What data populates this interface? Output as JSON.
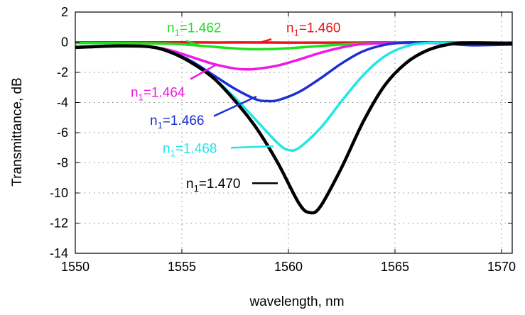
{
  "chart_data": {
    "type": "line",
    "title": "",
    "xlabel": "wavelength, nm",
    "ylabel": "Transmittance, dB",
    "xlim": [
      1550,
      1570.5
    ],
    "ylim": [
      -14,
      2
    ],
    "x_ticks": [
      1550,
      1555,
      1560,
      1565,
      1570
    ],
    "x_tick_labels": [
      "1550",
      "1555",
      "1560",
      "1565",
      "1570"
    ],
    "y_ticks": [
      2,
      0,
      -2,
      -4,
      -6,
      -8,
      -10,
      -12,
      -14
    ],
    "y_tick_labels": [
      "2",
      "0",
      "-2",
      "-4",
      "-6",
      "-8",
      "-10",
      "-12",
      "-14"
    ],
    "grid": true,
    "legend": "annotations",
    "series": [
      {
        "name": "n1=1.460",
        "label_base": "n",
        "label_sub": "1",
        "label_value": "=1.460",
        "color": "#e8141b",
        "x": [
          1550,
          1552,
          1554,
          1556,
          1558,
          1560,
          1562,
          1564,
          1566,
          1568,
          1570,
          1570.5
        ],
        "y": [
          -0.01,
          -0.01,
          -0.01,
          -0.02,
          -0.02,
          -0.03,
          -0.03,
          -0.02,
          -0.02,
          -0.01,
          -0.01,
          -0.01
        ]
      },
      {
        "name": "n1=1.462",
        "label_base": "n",
        "label_sub": "1",
        "label_value": "=1.462",
        "color": "#1fe01f",
        "x": [
          1550,
          1552,
          1554,
          1555,
          1556,
          1557,
          1558,
          1559,
          1560,
          1561,
          1562,
          1563,
          1564,
          1566,
          1568,
          1570,
          1570.5
        ],
        "y": [
          -0.05,
          -0.06,
          -0.08,
          -0.14,
          -0.25,
          -0.36,
          -0.45,
          -0.46,
          -0.4,
          -0.3,
          -0.2,
          -0.12,
          -0.07,
          -0.04,
          -0.03,
          -0.03,
          -0.03
        ]
      },
      {
        "name": "n1=1.464",
        "label_base": "n",
        "label_sub": "1",
        "label_value": "=1.464",
        "color": "#ee18e8",
        "x": [
          1550,
          1552,
          1553.5,
          1554.5,
          1555.5,
          1556.5,
          1557.5,
          1558,
          1558.5,
          1559.5,
          1560.5,
          1561.5,
          1562.5,
          1563.5,
          1565,
          1567,
          1570.5
        ],
        "y": [
          -0.3,
          -0.25,
          -0.3,
          -0.55,
          -1.0,
          -1.45,
          -1.75,
          -1.8,
          -1.77,
          -1.55,
          -1.15,
          -0.7,
          -0.35,
          -0.12,
          -0.05,
          -0.05,
          -0.05
        ]
      },
      {
        "name": "n1=1.466",
        "label_base": "n",
        "label_sub": "1",
        "label_value": "=1.466",
        "color": "#1c2fd4",
        "x": [
          1550,
          1552,
          1553.5,
          1554.5,
          1555.5,
          1556.5,
          1557.5,
          1558.5,
          1559,
          1559.5,
          1560.5,
          1561.5,
          1562.5,
          1563.5,
          1564.5,
          1565.5,
          1567,
          1568.5,
          1570.5
        ],
        "y": [
          -0.3,
          -0.22,
          -0.3,
          -0.65,
          -1.3,
          -2.2,
          -3.1,
          -3.8,
          -3.9,
          -3.85,
          -3.3,
          -2.4,
          -1.4,
          -0.6,
          -0.18,
          -0.02,
          -0.05,
          -0.2,
          -0.15
        ]
      },
      {
        "name": "n1=1.468",
        "label_base": "n",
        "label_sub": "1",
        "label_value": "=1.468",
        "color": "#22e6e6",
        "x": [
          1550,
          1552,
          1553.5,
          1554.5,
          1555.5,
          1556.5,
          1557.5,
          1558.5,
          1559.5,
          1560,
          1560.5,
          1561.5,
          1562.5,
          1563.5,
          1564.5,
          1565.5,
          1566.5,
          1568,
          1570.5
        ],
        "y": [
          -0.3,
          -0.22,
          -0.3,
          -0.68,
          -1.4,
          -2.4,
          -3.7,
          -5.2,
          -6.7,
          -7.15,
          -7.0,
          -5.7,
          -3.9,
          -2.2,
          -0.95,
          -0.28,
          -0.05,
          -0.05,
          -0.05
        ]
      },
      {
        "name": "n1=1.470",
        "label_base": "n",
        "label_sub": "1",
        "label_value": "=1.470",
        "color": "#000000",
        "x": [
          1550,
          1552,
          1553.5,
          1554.5,
          1555.5,
          1556.5,
          1557.5,
          1558.5,
          1559.5,
          1560.5,
          1561,
          1561.5,
          1562.5,
          1563.5,
          1564.5,
          1565.5,
          1566.5,
          1567.5,
          1568.5,
          1570.5
        ],
        "y": [
          -0.35,
          -0.25,
          -0.3,
          -0.68,
          -1.4,
          -2.4,
          -3.9,
          -5.7,
          -8.0,
          -10.7,
          -11.3,
          -10.9,
          -8.3,
          -5.3,
          -2.9,
          -1.4,
          -0.55,
          -0.15,
          -0.05,
          -0.1
        ]
      }
    ],
    "annotations": [
      {
        "series": 1,
        "text_x": 1554.3,
        "text_y": 1.0,
        "line": [
          [
            1555.2,
            0.1
          ],
          [
            1556,
            -0.3
          ]
        ]
      },
      {
        "series": 0,
        "text_x": 1559.9,
        "text_y": 1.0,
        "line": [
          [
            1559.2,
            0.2
          ],
          [
            1558.6,
            -0.05
          ]
        ]
      },
      {
        "series": 2,
        "text_x": 1552.6,
        "text_y": -3.3,
        "line": [
          [
            1555.4,
            -2.45
          ],
          [
            1556.6,
            -1.5
          ]
        ]
      },
      {
        "series": 3,
        "text_x": 1553.5,
        "text_y": -5.15,
        "line": [
          [
            1556.5,
            -4.9
          ],
          [
            1558.5,
            -3.6
          ]
        ]
      },
      {
        "series": 4,
        "text_x": 1554.1,
        "text_y": -7.0,
        "line": [
          [
            1557.3,
            -7.0
          ],
          [
            1559.3,
            -6.9
          ]
        ]
      },
      {
        "series": 5,
        "text_x": 1555.2,
        "text_y": -9.35,
        "line": [
          [
            1558.3,
            -9.35
          ],
          [
            1559.5,
            -9.35
          ]
        ]
      }
    ]
  }
}
